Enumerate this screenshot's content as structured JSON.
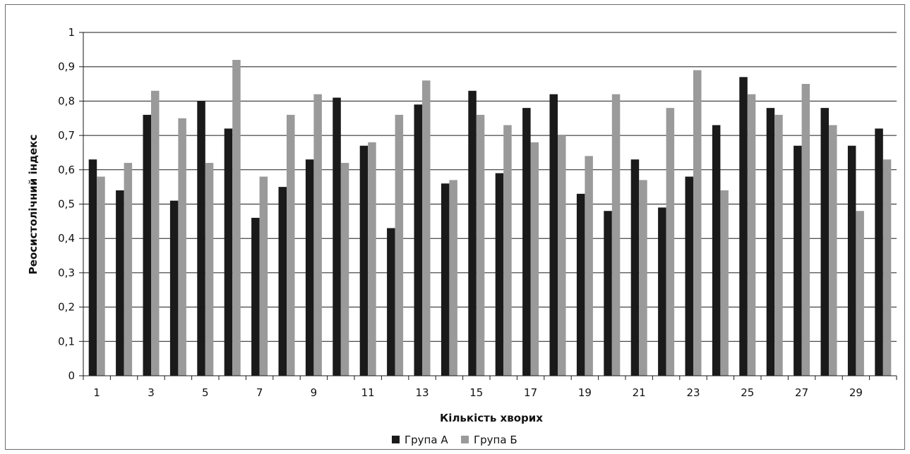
{
  "chart_data": {
    "type": "bar",
    "xlabel": "Кількість хворих",
    "ylabel": "Реосистолічний індекс",
    "ylim": [
      0,
      1
    ],
    "yticks": [
      0,
      0.1,
      0.2,
      0.3,
      0.4,
      0.5,
      0.6,
      0.7,
      0.8,
      0.9,
      1
    ],
    "ytick_labels": [
      "0",
      "0,1",
      "0,2",
      "0,3",
      "0,4",
      "0,5",
      "0,6",
      "0,7",
      "0,8",
      "0,9",
      "1"
    ],
    "grid": "horizontal",
    "legend_position": "bottom",
    "categories": [
      "1",
      "2",
      "3",
      "4",
      "5",
      "6",
      "7",
      "8",
      "9",
      "10",
      "11",
      "12",
      "13",
      "14",
      "15",
      "16",
      "17",
      "18",
      "19",
      "20",
      "21",
      "22",
      "23",
      "24",
      "25",
      "26",
      "27",
      "28",
      "29",
      "30"
    ],
    "xtick_labels": [
      "1",
      "",
      "3",
      "",
      "5",
      "",
      "7",
      "",
      "9",
      "",
      "11",
      "",
      "13",
      "",
      "15",
      "",
      "17",
      "",
      "19",
      "",
      "21",
      "",
      "23",
      "",
      "25",
      "",
      "27",
      "",
      "29",
      ""
    ],
    "series": [
      {
        "name": "Група А",
        "color": "#1a1a1a",
        "values": [
          0.63,
          0.54,
          0.76,
          0.51,
          0.8,
          0.72,
          0.46,
          0.55,
          0.63,
          0.81,
          0.67,
          0.43,
          0.79,
          0.56,
          0.83,
          0.59,
          0.78,
          0.82,
          0.53,
          0.48,
          0.63,
          0.49,
          0.58,
          0.73,
          0.87,
          0.78,
          0.67,
          0.78,
          0.67,
          0.72
        ]
      },
      {
        "name": "Група Б",
        "color": "#9a9a9a",
        "values": [
          0.58,
          0.62,
          0.83,
          0.75,
          0.62,
          0.92,
          0.58,
          0.76,
          0.82,
          0.62,
          0.68,
          0.76,
          0.86,
          0.57,
          0.76,
          0.73,
          0.68,
          0.7,
          0.64,
          0.82,
          0.57,
          0.78,
          0.89,
          0.54,
          0.82,
          0.76,
          0.85,
          0.73,
          0.48,
          0.63
        ]
      }
    ]
  }
}
